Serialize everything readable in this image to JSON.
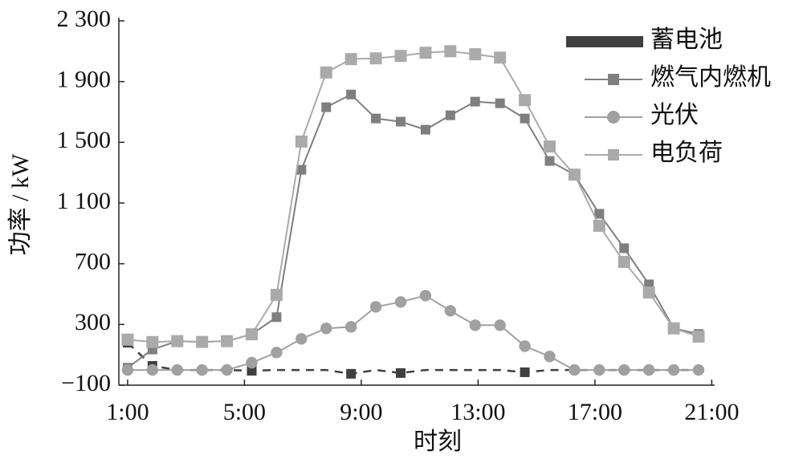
{
  "chart_data": {
    "type": "line",
    "x_label": "时刻",
    "y_label": "功率 / kW",
    "x": [
      1,
      1.85,
      2.7,
      3.55,
      4.4,
      5.25,
      6.1,
      6.95,
      7.8,
      8.65,
      9.5,
      10.35,
      11.2,
      12.05,
      12.9,
      13.75,
      14.6,
      15.45,
      16.3,
      17.15,
      18,
      18.85,
      19.7,
      20.55
    ],
    "xlim": [
      0.7,
      21.1
    ],
    "xticks": [
      {
        "value": 1,
        "label": "1:00"
      },
      {
        "value": 5,
        "label": "5:00"
      },
      {
        "value": 9,
        "label": "9:00"
      },
      {
        "value": 13,
        "label": "13:00"
      },
      {
        "value": 17,
        "label": "17:00"
      },
      {
        "value": 21,
        "label": "21:00"
      }
    ],
    "ylim": [
      -100,
      2300
    ],
    "yticks": [
      {
        "value": -100,
        "label": "−100"
      },
      300,
      700,
      {
        "value": 1100,
        "label": "1 100"
      },
      {
        "value": 1500,
        "label": "1 500"
      },
      {
        "value": 1900,
        "label": "1 900"
      },
      {
        "value": 2300,
        "label": "2 300"
      }
    ],
    "legend": "upper right",
    "series": [
      {
        "name": "蓄电池",
        "color": "#404040",
        "marker": "square",
        "dash": true,
        "values": [
          180,
          27,
          0,
          0,
          0,
          -5,
          0,
          0,
          0,
          -25,
          0,
          -20,
          0,
          0,
          0,
          0,
          -15,
          0,
          0,
          0,
          0,
          0,
          0,
          0
        ]
      },
      {
        "name": "燃气内燃机",
        "color": "#7f7f7f",
        "marker": "square",
        "dash": false,
        "values": [
          15,
          135,
          190,
          185,
          190,
          235,
          348,
          1319,
          1731,
          1815,
          1657,
          1636,
          1583,
          1678,
          1768,
          1757,
          1657,
          1377,
          1287,
          1029,
          802,
          564,
          274,
          237
        ]
      },
      {
        "name": "光伏",
        "color": "#a0a0a0",
        "marker": "circle",
        "dash": false,
        "values": [
          0,
          0,
          0,
          0,
          0,
          48,
          115,
          205,
          274,
          284,
          416,
          448,
          490,
          390,
          295,
          295,
          157,
          89,
          0,
          0,
          0,
          0,
          0,
          0
        ]
      },
      {
        "name": "电负荷",
        "color": "#aaaaaa",
        "marker": "square",
        "dash": false,
        "values": [
          200,
          184,
          190,
          185,
          190,
          235,
          495,
          1505,
          1960,
          2048,
          2053,
          2069,
          2090,
          2100,
          2080,
          2058,
          1778,
          1472,
          1287,
          950,
          712,
          511,
          274,
          220
        ]
      }
    ]
  }
}
